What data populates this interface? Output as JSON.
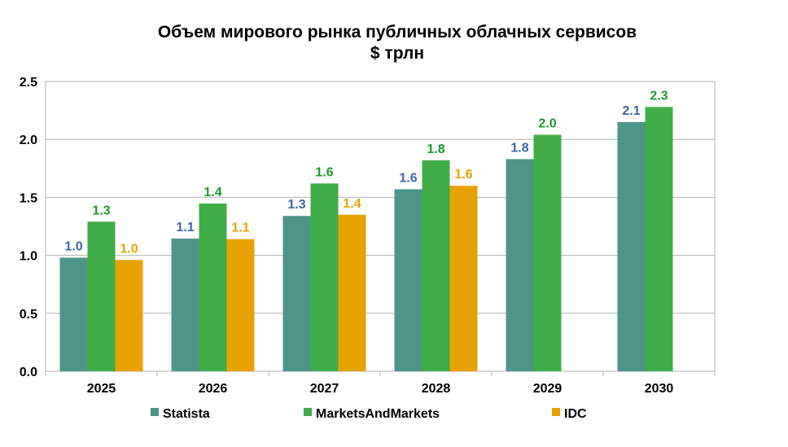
{
  "chart_data": {
    "type": "bar",
    "title": "Объем мирового рынка публичных облачных сервисов",
    "subtitle": "$ трлн",
    "xlabel": "",
    "ylabel": "",
    "ylim": [
      0,
      2.5
    ],
    "yticks": [
      "0.0",
      "0.5",
      "1.0",
      "1.5",
      "2.0",
      "2.5"
    ],
    "ytick_values": [
      0,
      0.5,
      1.0,
      1.5,
      2.0,
      2.5
    ],
    "grid": true,
    "legend": "bottom",
    "categories": [
      "2025",
      "2026",
      "2027",
      "2028",
      "2029",
      "2030"
    ],
    "series": [
      {
        "name": "Statista",
        "color": "#4e9589",
        "label_color": "#3e66a0",
        "values": [
          0.98,
          1.145,
          1.34,
          1.57,
          1.83,
          2.15
        ],
        "labels": [
          "1.0",
          "1.1",
          "1.3",
          "1.6",
          "1.8",
          "2.1"
        ]
      },
      {
        "name": "MarketsAndMarkets",
        "color": "#40ad48",
        "label_color": "#1a9a2a",
        "values": [
          1.29,
          1.447,
          1.62,
          1.82,
          2.04,
          2.28
        ],
        "labels": [
          "1.3",
          "1.4",
          "1.6",
          "1.8",
          "2.0",
          "2.3"
        ]
      },
      {
        "name": "IDC",
        "color": "#e8a200",
        "label_color": "#e8a200",
        "values": [
          0.96,
          1.14,
          1.35,
          1.6,
          null,
          null
        ],
        "labels": [
          "1.0",
          "1.1",
          "1.4",
          "1.6",
          null,
          null
        ]
      }
    ]
  }
}
